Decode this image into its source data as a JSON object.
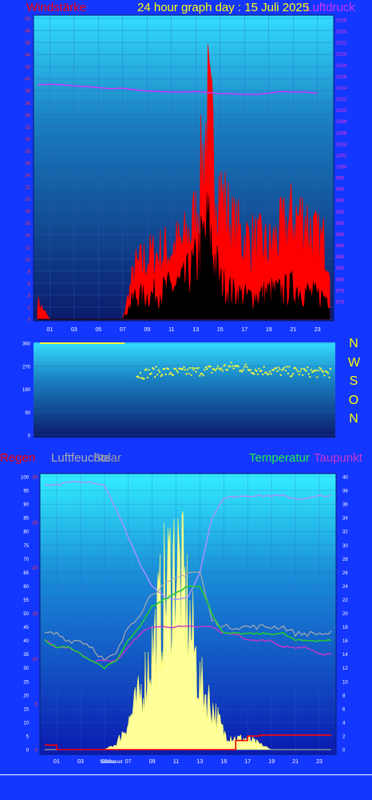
{
  "header": {
    "title": "24 hour graph day : 15 Juli 2025",
    "left_label": "Windstärke",
    "right_label": "Luftdruck"
  },
  "compass": [
    "N",
    "W",
    "S",
    "O",
    "N"
  ],
  "bottom_labels": {
    "rain": "Regen",
    "humidity": "Luftfeuchte",
    "sun": "Solar",
    "temperature": "Temperatur",
    "dewpoint": "Taupunkt"
  },
  "colors": {
    "wind": "#ff0000",
    "pressure": "#cc33ff",
    "direction": "#ffff33",
    "temperature": "#22cc33",
    "dewpoint": "#cc33cc",
    "humidity": "#aaaaaa",
    "solar": "#ffff99",
    "rain": "#ff0000",
    "text_yellow": "#ffff00"
  },
  "chart_data": [
    {
      "type": "area",
      "name": "wind",
      "x_ticks": [
        "01",
        "03",
        "05",
        "07",
        "09",
        "11",
        "13",
        "15",
        "17",
        "19",
        "21",
        "23"
      ],
      "ylim_left": [
        0,
        50
      ],
      "y_ticks_left": [
        0,
        2,
        4,
        6,
        8,
        10,
        12,
        14,
        16,
        18,
        20,
        22,
        24,
        26,
        28,
        30,
        32,
        34,
        36,
        38,
        40,
        42,
        44,
        46,
        48,
        50
      ],
      "ylim_right": [
        974,
        1026
      ],
      "y_ticks_right": [
        976,
        978,
        980,
        982,
        984,
        986,
        988,
        990,
        992,
        994,
        996,
        998,
        1000,
        1002,
        1004,
        1006,
        1008,
        1010,
        1012,
        1014,
        1016,
        1018,
        1020,
        1022,
        1024,
        1026
      ],
      "wind_gust_hourly": [
        3.5,
        0,
        0,
        0,
        0,
        0,
        0,
        0,
        10,
        12,
        13,
        14,
        15,
        20,
        40,
        25,
        18,
        16,
        15,
        14,
        17,
        20,
        20,
        15
      ],
      "wind_avg_hourly": [
        0,
        0,
        0,
        0,
        0,
        0,
        0,
        0,
        5,
        5,
        6,
        7,
        8,
        12,
        20,
        8,
        6,
        5,
        5,
        6,
        6,
        7,
        6,
        5
      ],
      "pressure_hourly": [
        1014.5,
        1014.6,
        1014.5,
        1014.3,
        1014.2,
        1014.0,
        1013.8,
        1013.9,
        1013.6,
        1013.4,
        1013.3,
        1013.2,
        1013.2,
        1013.3,
        1013.1,
        1012.9,
        1012.9,
        1012.8,
        1012.8,
        1013.0,
        1013.3,
        1013.2,
        1013.2,
        1013.0
      ],
      "grid": true
    },
    {
      "type": "scatter",
      "name": "wind_direction",
      "ylim": [
        0,
        360
      ],
      "y_ticks": [
        0,
        90,
        180,
        270,
        360
      ],
      "direction_hourly": [
        360,
        360,
        360,
        360,
        360,
        360,
        360,
        360,
        235,
        245,
        250,
        245,
        248,
        250,
        255,
        262,
        268,
        262,
        255,
        252,
        250,
        248,
        248,
        245
      ]
    },
    {
      "type": "line",
      "name": "weather",
      "x_ticks": [
        "01",
        "03",
        "05",
        "07",
        "09",
        "11",
        "13",
        "15",
        "17",
        "19",
        "21",
        "23"
      ],
      "x_markers": [
        "Sunrise",
        "Sunset"
      ],
      "ylim_left": [
        0,
        100
      ],
      "y_ticks_left": [
        0,
        5,
        10,
        15,
        20,
        25,
        30,
        35,
        40,
        45,
        50,
        55,
        60,
        65,
        70,
        75,
        80,
        85,
        90,
        95,
        100
      ],
      "ylim_rain": [
        0,
        30
      ],
      "y_ticks_rain": [
        0,
        5,
        10,
        15,
        20,
        25,
        30
      ],
      "ylim_right": [
        0,
        40
      ],
      "y_ticks_right": [
        0,
        2,
        4,
        6,
        8,
        10,
        12,
        14,
        16,
        18,
        20,
        22,
        24,
        26,
        28,
        30,
        32,
        34,
        36,
        38,
        40
      ],
      "humidity_hourly": [
        97,
        97,
        98,
        98,
        98,
        97,
        88,
        78,
        68,
        60,
        56,
        55,
        56,
        65,
        85,
        92,
        93,
        93,
        93,
        93,
        93,
        92,
        92,
        93
      ],
      "temperature_hourly": [
        16,
        15,
        15,
        14,
        13,
        12,
        13,
        16,
        18,
        21,
        22,
        23,
        24,
        24,
        20,
        17,
        17,
        17,
        17,
        17,
        17,
        16,
        16,
        16
      ],
      "dewpoint_hourly": [
        16,
        15,
        15,
        14,
        13,
        13,
        13,
        15,
        17,
        18,
        18,
        18,
        18,
        18,
        18,
        17,
        17,
        16,
        16,
        16,
        15,
        15,
        15,
        14
      ],
      "humidity_sensor_hourly": [
        17,
        17,
        16,
        16,
        15,
        13,
        14,
        18,
        20,
        23,
        24,
        25,
        26,
        26,
        19,
        18,
        18,
        18,
        18,
        18,
        18,
        17,
        17,
        17
      ],
      "solar_hourly": [
        0,
        0,
        0,
        0,
        0,
        0,
        1,
        5,
        10,
        18,
        28,
        35,
        25,
        12,
        8,
        3,
        2,
        2,
        1,
        0,
        0,
        0,
        0,
        0
      ],
      "rain_hourly": [
        0.5,
        0,
        0,
        0,
        0,
        0,
        0,
        0,
        0,
        0,
        0,
        0,
        0,
        0,
        0,
        0,
        1.0,
        1.5,
        1.6,
        1.6,
        1.6,
        1.6,
        1.6,
        1.6
      ],
      "grid": true
    }
  ]
}
